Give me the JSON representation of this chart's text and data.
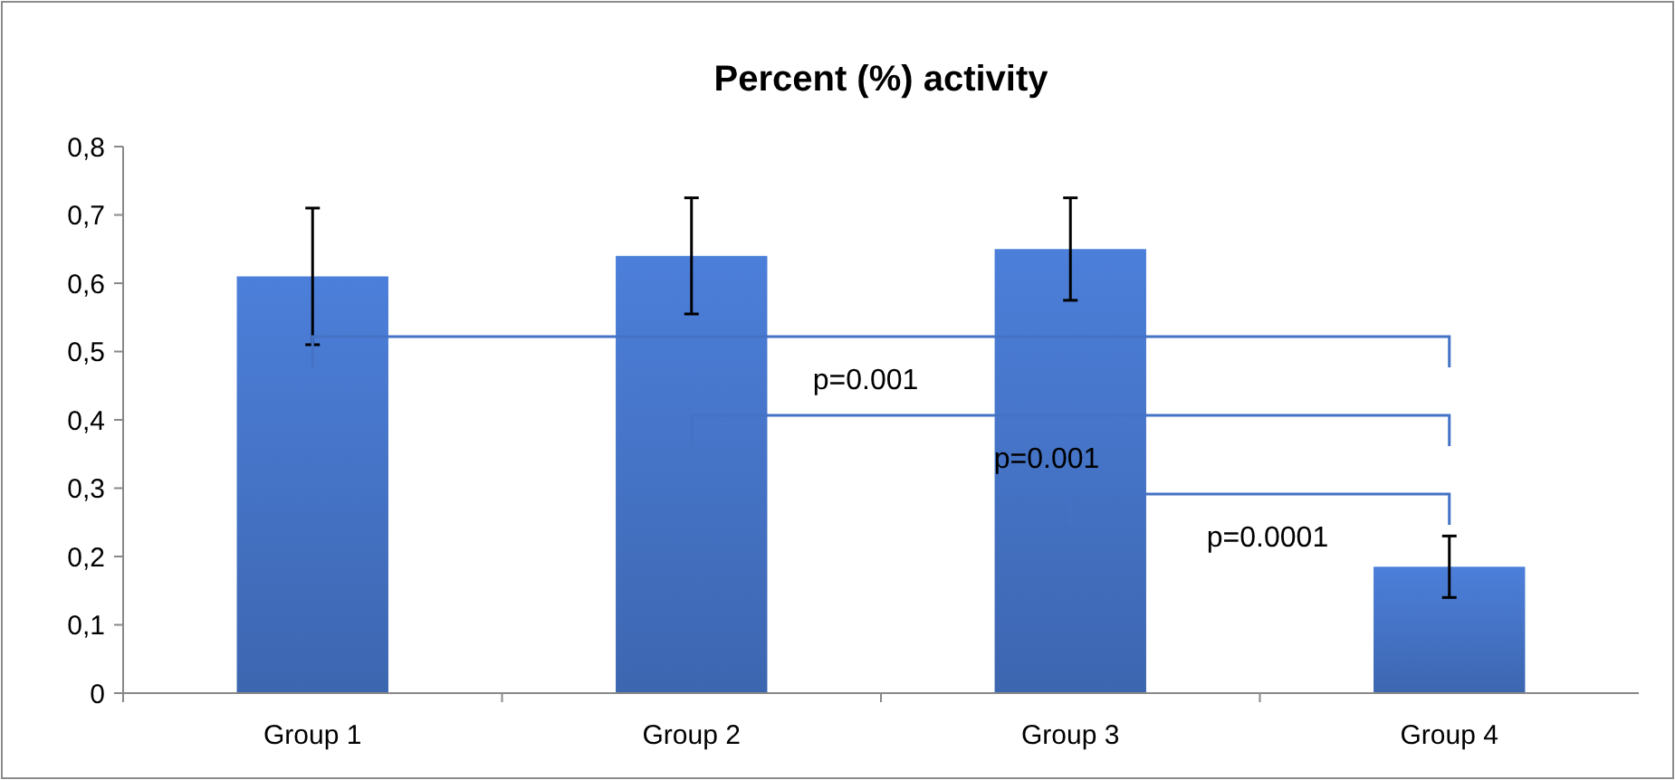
{
  "chart_data": {
    "type": "bar",
    "title": "Percent (%) activity",
    "categories": [
      "Group 1",
      "Group 2",
      "Group 3",
      "Group 4"
    ],
    "values": [
      0.61,
      0.64,
      0.65,
      0.185
    ],
    "errors": [
      0.1,
      0.085,
      0.075,
      0.045
    ],
    "color": "#4472c4",
    "ylim": [
      0,
      0.8
    ],
    "yticks": [
      0,
      {
        "value": 0.1,
        "label": "0,1"
      },
      {
        "value": 0.2,
        "label": "0,2"
      },
      {
        "value": 0.3,
        "label": "0,3"
      },
      {
        "value": 0.4,
        "label": "0,4"
      },
      {
        "value": 0.5,
        "label": "0,5"
      },
      {
        "value": 0.6,
        "label": "0,6"
      },
      {
        "value": 0.7,
        "label": "0,7"
      },
      {
        "value": 0.8,
        "label": "0,8"
      }
    ],
    "grid": false,
    "annotations": [
      "p=0.001",
      "p=0.001",
      "p=0.0001"
    ]
  }
}
